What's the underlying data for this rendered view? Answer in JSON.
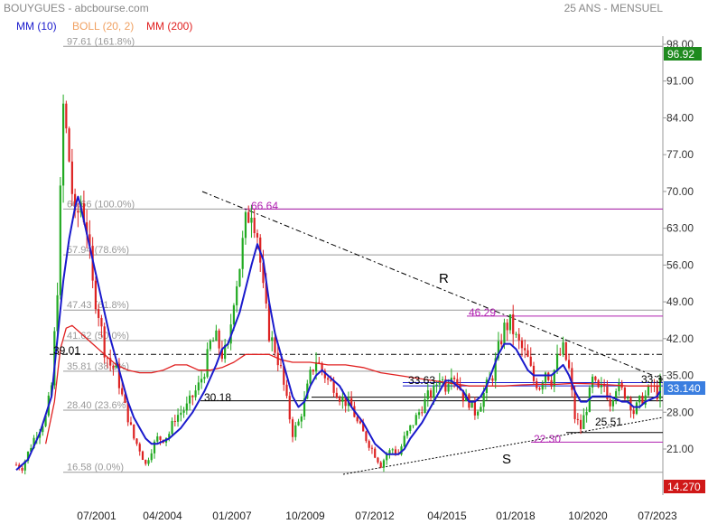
{
  "header": {
    "title": "BOUYGUES - abcbourse.com",
    "period": "25 ANS - MENSUEL",
    "legend": [
      {
        "label": "MM (10)",
        "color": "#1a1acc"
      },
      {
        "label": "BOLL (20, 2)",
        "color": "#f0a060"
      },
      {
        "label": "MM (200)",
        "color": "#e02020"
      }
    ]
  },
  "colors": {
    "up": "#22aa22",
    "down": "#dd2222",
    "ma10": "#1a1acc",
    "ma200": "#e02020",
    "fib": "#999999",
    "magenta": "#b020b0",
    "last_price_bg": "#3a7ee0",
    "high_bg": "#1e8a1e",
    "low_bg": "#d01818"
  },
  "chart_data": {
    "type": "candlestick",
    "title": "BOUYGUES - abcbourse.com",
    "subtitle": "25 ANS - MENSUEL",
    "ylim": [
      14.27,
      98.0
    ],
    "y_ticks": [
      "98.00",
      "91.00",
      "84.00",
      "77.00",
      "70.00",
      "63.00",
      "56.00",
      "49.00",
      "42.00",
      "35.00",
      "28.00",
      "21.00"
    ],
    "y_tick_values": [
      98,
      91,
      84,
      77,
      70,
      63,
      56,
      49,
      42,
      35,
      28,
      21
    ],
    "x_ticks": [
      "07/2001",
      "04/2004",
      "01/2007",
      "10/2009",
      "07/2012",
      "04/2015",
      "01/2018",
      "10/2020",
      "07/2023"
    ],
    "x_tick_index": [
      35,
      68,
      101,
      134,
      167,
      200,
      233,
      266,
      299
    ],
    "price_points": [
      [
        0,
        18
      ],
      [
        2,
        17.5
      ],
      [
        6,
        23
      ],
      [
        10,
        27
      ],
      [
        12,
        33
      ],
      [
        14,
        52
      ],
      [
        16,
        86
      ],
      [
        18,
        76
      ],
      [
        20,
        64
      ],
      [
        22,
        68
      ],
      [
        24,
        63
      ],
      [
        26,
        52
      ],
      [
        28,
        47
      ],
      [
        30,
        40
      ],
      [
        32,
        37
      ],
      [
        34,
        36
      ],
      [
        36,
        31
      ],
      [
        38,
        27
      ],
      [
        40,
        23
      ],
      [
        42,
        21
      ],
      [
        44,
        18
      ],
      [
        46,
        21
      ],
      [
        48,
        23
      ],
      [
        50,
        23
      ],
      [
        52,
        24
      ],
      [
        54,
        27
      ],
      [
        56,
        28
      ],
      [
        58,
        29
      ],
      [
        60,
        31
      ],
      [
        62,
        33
      ],
      [
        64,
        36
      ],
      [
        66,
        41
      ],
      [
        68,
        42
      ],
      [
        70,
        39
      ],
      [
        72,
        40
      ],
      [
        74,
        50
      ],
      [
        76,
        56
      ],
      [
        78,
        64
      ],
      [
        80,
        67
      ],
      [
        82,
        62
      ],
      [
        84,
        51
      ],
      [
        86,
        43
      ],
      [
        88,
        40
      ],
      [
        90,
        36
      ],
      [
        92,
        30
      ],
      [
        94,
        24
      ],
      [
        96,
        26
      ],
      [
        98,
        30
      ],
      [
        100,
        35
      ],
      [
        102,
        38
      ],
      [
        104,
        36
      ],
      [
        106,
        34
      ],
      [
        108,
        33
      ],
      [
        110,
        31
      ],
      [
        112,
        30
      ],
      [
        114,
        29
      ],
      [
        116,
        26
      ],
      [
        118,
        24
      ],
      [
        120,
        22
      ],
      [
        122,
        20
      ],
      [
        124,
        18
      ],
      [
        126,
        20
      ],
      [
        128,
        21
      ],
      [
        130,
        20
      ],
      [
        132,
        23
      ],
      [
        134,
        25
      ],
      [
        136,
        27
      ],
      [
        138,
        29
      ],
      [
        140,
        31
      ],
      [
        142,
        32
      ],
      [
        144,
        35
      ],
      [
        146,
        33
      ],
      [
        148,
        36
      ],
      [
        150,
        34
      ],
      [
        152,
        31
      ],
      [
        154,
        30
      ],
      [
        156,
        28
      ],
      [
        158,
        30
      ],
      [
        160,
        33
      ],
      [
        162,
        35
      ],
      [
        164,
        40
      ],
      [
        166,
        44
      ],
      [
        168,
        45
      ],
      [
        170,
        42
      ],
      [
        172,
        40
      ],
      [
        174,
        38
      ],
      [
        176,
        34
      ],
      [
        178,
        33
      ],
      [
        180,
        36
      ],
      [
        182,
        34
      ],
      [
        184,
        38
      ],
      [
        186,
        40
      ],
      [
        188,
        36
      ],
      [
        190,
        27
      ],
      [
        192,
        25
      ],
      [
        194,
        29
      ],
      [
        196,
        34
      ],
      [
        198,
        32
      ],
      [
        200,
        33
      ],
      [
        202,
        30
      ],
      [
        204,
        33
      ],
      [
        206,
        32
      ],
      [
        208,
        31
      ],
      [
        210,
        28
      ],
      [
        212,
        30
      ],
      [
        214,
        31
      ],
      [
        216,
        33
      ],
      [
        218,
        31.5
      ],
      [
        219,
        33.14
      ]
    ],
    "ma10": [
      [
        0,
        17
      ],
      [
        4,
        19
      ],
      [
        8,
        24
      ],
      [
        12,
        31
      ],
      [
        14,
        42
      ],
      [
        16,
        53
      ],
      [
        18,
        61
      ],
      [
        20,
        67
      ],
      [
        21,
        69
      ],
      [
        22,
        67
      ],
      [
        24,
        62
      ],
      [
        26,
        57
      ],
      [
        28,
        52
      ],
      [
        30,
        47
      ],
      [
        32,
        42
      ],
      [
        34,
        38
      ],
      [
        36,
        34
      ],
      [
        38,
        30
      ],
      [
        40,
        27
      ],
      [
        42,
        25
      ],
      [
        44,
        23
      ],
      [
        46,
        22
      ],
      [
        48,
        22
      ],
      [
        52,
        23
      ],
      [
        56,
        25
      ],
      [
        60,
        28
      ],
      [
        64,
        32
      ],
      [
        68,
        37
      ],
      [
        70,
        40
      ],
      [
        72,
        41
      ],
      [
        76,
        47
      ],
      [
        80,
        56
      ],
      [
        82,
        60
      ],
      [
        84,
        57
      ],
      [
        86,
        49
      ],
      [
        88,
        43
      ],
      [
        90,
        39
      ],
      [
        92,
        35
      ],
      [
        94,
        31
      ],
      [
        96,
        29
      ],
      [
        98,
        30
      ],
      [
        100,
        33
      ],
      [
        102,
        35
      ],
      [
        104,
        36
      ],
      [
        106,
        35
      ],
      [
        110,
        33
      ],
      [
        112,
        31
      ],
      [
        114,
        29
      ],
      [
        118,
        26
      ],
      [
        120,
        24
      ],
      [
        122,
        22
      ],
      [
        124,
        21
      ],
      [
        126,
        20
      ],
      [
        128,
        20
      ],
      [
        130,
        20
      ],
      [
        132,
        21
      ],
      [
        134,
        23
      ],
      [
        138,
        26
      ],
      [
        142,
        30
      ],
      [
        144,
        32
      ],
      [
        146,
        34
      ],
      [
        148,
        34
      ],
      [
        150,
        33
      ],
      [
        152,
        32
      ],
      [
        154,
        30
      ],
      [
        156,
        30
      ],
      [
        158,
        31
      ],
      [
        160,
        33
      ],
      [
        162,
        36
      ],
      [
        164,
        39
      ],
      [
        166,
        41
      ],
      [
        168,
        41
      ],
      [
        170,
        40
      ],
      [
        172,
        38
      ],
      [
        174,
        36
      ],
      [
        176,
        35
      ],
      [
        178,
        35
      ],
      [
        182,
        35
      ],
      [
        184,
        36
      ],
      [
        186,
        37
      ],
      [
        188,
        35
      ],
      [
        190,
        32
      ],
      [
        192,
        30
      ],
      [
        194,
        30
      ],
      [
        196,
        31
      ],
      [
        198,
        31
      ],
      [
        200,
        31
      ],
      [
        202,
        31
      ],
      [
        206,
        30
      ],
      [
        208,
        30
      ],
      [
        210,
        29
      ],
      [
        212,
        29
      ],
      [
        214,
        30
      ],
      [
        218,
        31
      ],
      [
        219,
        32
      ]
    ],
    "ma200": [
      [
        10,
        22
      ],
      [
        13,
        30
      ],
      [
        15,
        40
      ],
      [
        17,
        44
      ],
      [
        19,
        44.5
      ],
      [
        22,
        43
      ],
      [
        26,
        41
      ],
      [
        30,
        39
      ],
      [
        34,
        37
      ],
      [
        38,
        36
      ],
      [
        42,
        35.5
      ],
      [
        46,
        35.5
      ],
      [
        50,
        36
      ],
      [
        54,
        37
      ],
      [
        58,
        37
      ],
      [
        62,
        36
      ],
      [
        66,
        36
      ],
      [
        70,
        36.5
      ],
      [
        74,
        37.5
      ],
      [
        78,
        39
      ],
      [
        82,
        39
      ],
      [
        86,
        39
      ],
      [
        90,
        38
      ],
      [
        94,
        37.5
      ],
      [
        100,
        37.5
      ],
      [
        106,
        37
      ],
      [
        112,
        37
      ],
      [
        118,
        36.5
      ],
      [
        124,
        35.5
      ],
      [
        130,
        35
      ],
      [
        136,
        34.5
      ],
      [
        142,
        34
      ],
      [
        148,
        33.5
      ],
      [
        154,
        33
      ],
      [
        160,
        33
      ],
      [
        166,
        33
      ],
      [
        172,
        33.2
      ],
      [
        178,
        33.3
      ],
      [
        184,
        33.3
      ],
      [
        190,
        33.5
      ],
      [
        196,
        33.4
      ],
      [
        202,
        33.2
      ],
      [
        208,
        33
      ],
      [
        214,
        33
      ],
      [
        219,
        33
      ]
    ],
    "fibonacci": [
      {
        "value": 97.61,
        "label": "97.61 (161.8%)"
      },
      {
        "value": 66.66,
        "label": "66.66 (100.0%)"
      },
      {
        "value": 57.94,
        "label": "57.94 (78.6%)"
      },
      {
        "value": 47.43,
        "label": "47.43 (61.8%)"
      },
      {
        "value": 41.62,
        "label": "41.62 (50.0%)"
      },
      {
        "value": 35.81,
        "label": "35.81 (38.2%)"
      },
      {
        "value": 28.4,
        "label": "28.40 (23.6%)"
      },
      {
        "value": 16.58,
        "label": "16.58 (0.0%)"
      }
    ],
    "annotations": {
      "high_66_64": "66.64",
      "level_46_29": "46.29",
      "level_39_01": "39.01",
      "level_33_63": "33.63",
      "level_33_3": "33.3",
      "level_30_18": "30.18",
      "level_25_51": "25.51",
      "level_22_30": "22.30",
      "resistance": "R",
      "support": "S"
    },
    "price_tags": {
      "high": "96.92",
      "last": "33.140",
      "low": "14.270"
    }
  }
}
